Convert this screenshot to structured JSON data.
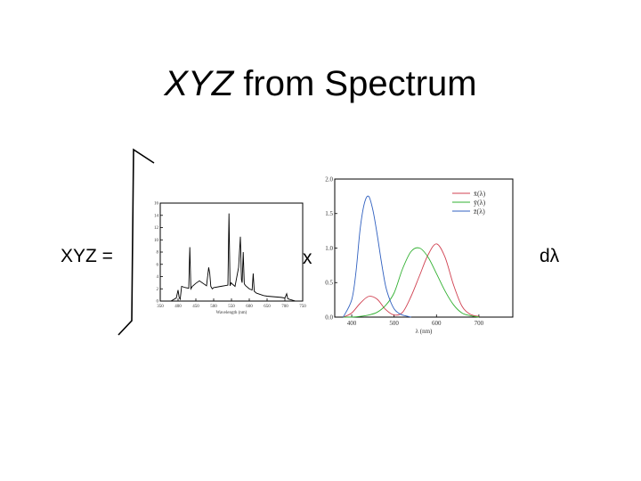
{
  "slide": {
    "title_italic": "XYZ",
    "title_rest": " from Spectrum",
    "lhs_label": "XYZ =",
    "times_label": "x",
    "dlambda_label": "dλ"
  },
  "chart_data": [
    {
      "type": "line",
      "xlabel": "Wavelength (nm)",
      "ylabel": "",
      "xlim": [
        350,
        750
      ],
      "ylim": [
        0,
        16
      ],
      "xticks": [
        350,
        400,
        450,
        500,
        550,
        600,
        650,
        700,
        750
      ],
      "yticks": [
        0,
        2,
        4,
        6,
        8,
        10,
        12,
        14,
        16
      ],
      "grid": false,
      "series": [
        {
          "color": "#000000",
          "x": [
            350,
            380,
            395,
            400,
            403,
            406,
            410,
            420,
            430,
            433,
            436,
            440,
            450,
            460,
            480,
            486,
            489,
            492,
            496,
            500,
            520,
            540,
            543,
            546,
            549,
            552,
            560,
            570,
            575,
            578,
            580,
            583,
            586,
            590,
            600,
            608,
            611,
            614,
            620,
            640,
            650,
            690,
            700,
            705,
            708,
            712,
            730
          ],
          "y": [
            0,
            0,
            0.5,
            1.8,
            0.6,
            0.3,
            2.4,
            2.2,
            2.1,
            8.8,
            2.0,
            2.4,
            2.9,
            3.3,
            2.5,
            5.5,
            4.5,
            2.4,
            2.0,
            2.2,
            2.4,
            2.6,
            14.3,
            2.5,
            3.0,
            2.8,
            2.4,
            5.5,
            10.5,
            3.5,
            3.0,
            8.0,
            2.8,
            2.5,
            2.0,
            1.8,
            4.5,
            1.6,
            1.3,
            0.9,
            0.8,
            0.6,
            0.5,
            1.2,
            0.4,
            0.3,
            0
          ]
        }
      ]
    },
    {
      "type": "line",
      "xlabel": "λ (nm)",
      "ylabel": "",
      "xlim": [
        360,
        780
      ],
      "ylim": [
        0,
        2.0
      ],
      "xticks": [
        400,
        500,
        600,
        700
      ],
      "yticks": [
        0.0,
        0.5,
        1.0,
        1.5,
        2.0
      ],
      "ytick_labels": [
        "0.0",
        "0.5",
        "1.0",
        "1.5",
        "2.0"
      ],
      "grid": false,
      "legend_position": "top-right",
      "series": [
        {
          "name": "x̄(λ)",
          "color": "#d04050",
          "x": [
            380,
            400,
            420,
            440,
            460,
            480,
            500,
            520,
            540,
            560,
            580,
            600,
            620,
            640,
            660,
            680,
            700
          ],
          "y": [
            0.0,
            0.06,
            0.2,
            0.3,
            0.26,
            0.11,
            0.03,
            0.07,
            0.3,
            0.6,
            0.9,
            1.06,
            0.87,
            0.47,
            0.16,
            0.04,
            0.01
          ]
        },
        {
          "name": "ȳ(λ)",
          "color": "#30b030",
          "x": [
            380,
            400,
            420,
            440,
            460,
            480,
            500,
            520,
            540,
            560,
            580,
            600,
            620,
            640,
            660,
            680,
            700
          ],
          "y": [
            0.0,
            0.0,
            0.01,
            0.03,
            0.07,
            0.17,
            0.35,
            0.7,
            0.95,
            1.0,
            0.87,
            0.63,
            0.38,
            0.18,
            0.06,
            0.02,
            0.0
          ]
        },
        {
          "name": "z̄(λ)",
          "color": "#3060c0",
          "x": [
            380,
            400,
            410,
            420,
            430,
            440,
            450,
            460,
            470,
            480,
            490,
            500,
            510,
            520,
            540
          ],
          "y": [
            0.0,
            0.25,
            0.65,
            1.28,
            1.65,
            1.75,
            1.55,
            1.2,
            0.8,
            0.45,
            0.25,
            0.12,
            0.06,
            0.03,
            0.0
          ]
        }
      ]
    }
  ]
}
